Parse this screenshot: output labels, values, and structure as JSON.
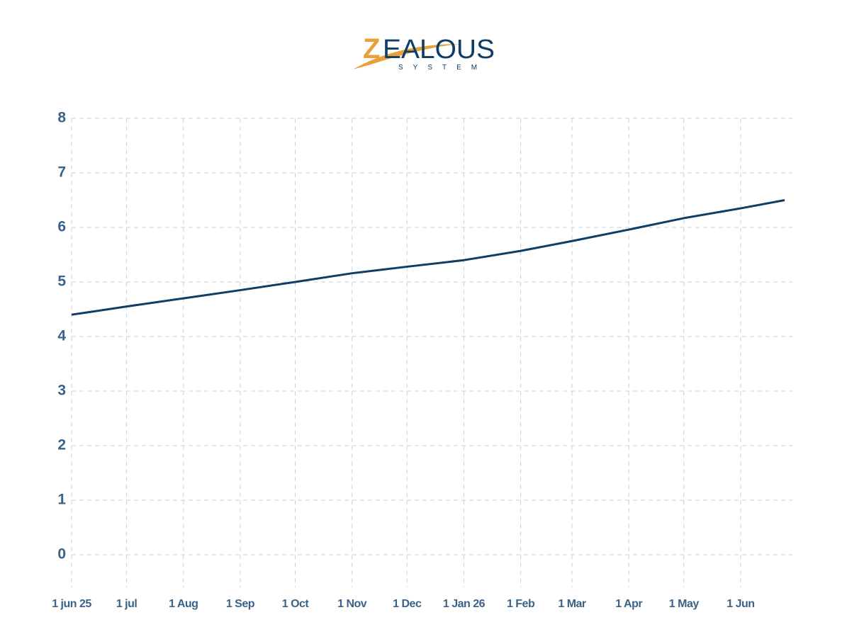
{
  "logo": {
    "name": "ZEALOUS",
    "tagline": "SYSTEM"
  },
  "chart_data": {
    "type": "line",
    "x": [
      "2025-06-01",
      "2025-07-01",
      "2025-08-01",
      "2025-09-01",
      "2025-10-01",
      "2025-11-01",
      "2025-12-01",
      "2026-01-01",
      "2026-02-01",
      "2026-03-01",
      "2026-04-01",
      "2026-05-01",
      "2026-06-01",
      "2026-06-25"
    ],
    "series": [
      {
        "color": "#0e3d66",
        "values": [
          4.4,
          4.55,
          4.7,
          4.85,
          5.0,
          5.16,
          5.28,
          5.4,
          5.57,
          5.75,
          5.96,
          6.17,
          6.35,
          6.5
        ]
      }
    ],
    "xlim": [
      "2025-06-01",
      "2026-06-25"
    ],
    "xticks": [
      {
        "value": "2025-06-01",
        "label": "1 jun 25"
      },
      {
        "value": "2025-07-01",
        "label": "1 jul"
      },
      {
        "value": "2025-08-01",
        "label": "1 Aug"
      },
      {
        "value": "2025-09-01",
        "label": "1 Sep"
      },
      {
        "value": "2025-10-01",
        "label": "1 Oct"
      },
      {
        "value": "2025-11-01",
        "label": "1 Nov"
      },
      {
        "value": "2025-12-01",
        "label": "1 Dec"
      },
      {
        "value": "2026-01-01",
        "label": "1 Jan 26"
      },
      {
        "value": "2026-02-01",
        "label": "1 Feb"
      },
      {
        "value": "2026-03-01",
        "label": "1 Mar"
      },
      {
        "value": "2026-04-01",
        "label": "1 Apr"
      },
      {
        "value": "2026-05-01",
        "label": "1 May"
      },
      {
        "value": "2026-06-01",
        "label": "1 Jun"
      }
    ],
    "ylim": [
      -0.6,
      8.1
    ],
    "yticks": [
      0,
      1,
      2,
      3,
      4,
      5,
      6,
      7,
      8
    ],
    "grid": true
  }
}
